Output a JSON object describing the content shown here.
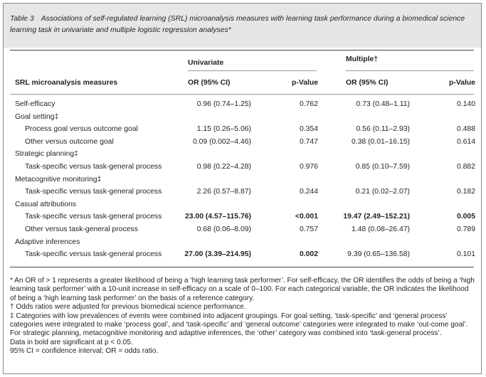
{
  "caption": {
    "label": "Table 3",
    "text": "Associations of self-regulated learning (SRL) microanalysis measures with learning task performance during a biomedical science learning task in univariate and multiple logistic regression analyses*"
  },
  "header": {
    "univariate": "Univariate",
    "multiple": "Multiple†",
    "measures": "SRL microanalysis measures",
    "uni_or": "OR (95% CI)",
    "uni_p": "p-Value",
    "mul_or": "OR (95% CI)",
    "mul_p": "p-Value"
  },
  "rows": [
    {
      "label": "Self-efficacy",
      "uni_or": "0.96 (0.74–1.25)",
      "uni_p": "0.762",
      "mul_or": "0.73 (0.48–1.11)",
      "mul_p": "0.140"
    },
    {
      "label": "Goal setting‡"
    },
    {
      "label": "Process goal versus outcome goal",
      "uni_or": "1.15 (0.26–5.06)",
      "uni_p": "0.354",
      "mul_or": "0.56 (0.11–2.93)",
      "mul_p": "0.488"
    },
    {
      "label": "Other versus outcome goal",
      "uni_or": "0.09 (0.002–4.46)",
      "uni_p": "0.747",
      "mul_or": "0.38 (0.01–16.15)",
      "mul_p": "0.614"
    },
    {
      "label": "Strategic planning‡"
    },
    {
      "label": "Task-specific versus task-general process",
      "uni_or": "0.98 (0.22–4.28)",
      "uni_p": "0.976",
      "mul_or": "0.85 (0.10–7.59)",
      "mul_p": "0.882"
    },
    {
      "label": "Metacognitive monitoring‡"
    },
    {
      "label": "Task-specific versus task-general process",
      "uni_or": "2.26 (0.57–8.87)",
      "uni_p": "0.244",
      "mul_or": "0.21 (0.02–2.07)",
      "mul_p": "0.182"
    },
    {
      "label": "Casual attributions"
    },
    {
      "label": "Task-specific versus task-general process",
      "uni_or": "23.00 (4.57–115.76)",
      "uni_p": "<0.001",
      "mul_or": "19.47 (2.49–152.21)",
      "mul_p": "0.005"
    },
    {
      "label": "Other versus task-general process",
      "uni_or": "0.68 (0.06–8.09)",
      "uni_p": "0.757",
      "mul_or": "1.48 (0.08–26.47)",
      "mul_p": "0.789"
    },
    {
      "label": "Adaptive inferences"
    },
    {
      "label": "Task-specific versus task-general process",
      "uni_or": "27.00 (3.39–214.95)",
      "uni_p": "0.002",
      "mul_or": "9.39 (0.65–136.58)",
      "mul_p": "0.101"
    }
  ],
  "footnotes": {
    "star": "* An OR of > 1 represents a greater likelihood of being a ‘high learning task performer’. For self-efficacy, the OR identifies the odds of being a ‘high learning task performer’ with a 10-unit increase in self-efficacy on a scale of 0–100. For each categorical variable, the OR indicates the likelihood of being a ‘high learning task performer’ on the basis of a reference category.",
    "dagger": "† Odds ratios were adjusted for previous biomedical science performance.",
    "ddagger": "‡ Categories with low prevalences of events were combined into adjacent groupings. For goal setting, ‘task-specific’ and ‘general process’ categories were integrated to make ‘process goal’, and ‘task-specific’ and ‘general outcome’ categories were integrated to make ‘out-come goal’. For strategic planning, metacognitive monitoring and adaptive inferences, the ‘other’ category was combined into ‘task-general process’.",
    "bold": "Data in bold are significant at p < 0.05.",
    "abbrev": "95% CI = confidence interval; OR = odds ratio."
  }
}
